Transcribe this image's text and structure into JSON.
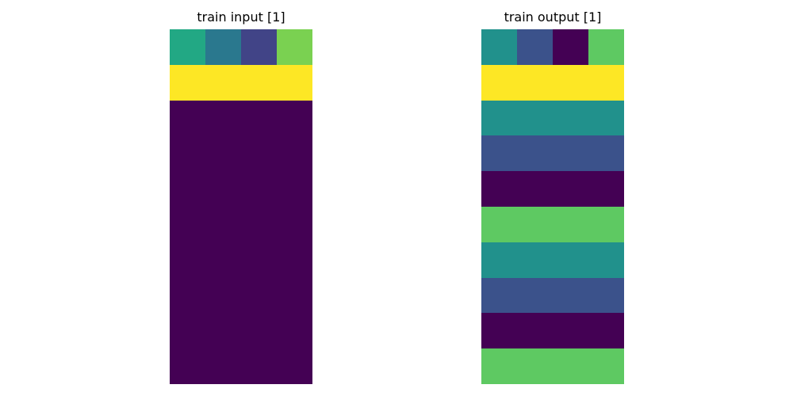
{
  "palette": {
    "0": "#440154",
    "1": "#482878",
    "2": "#3e4989",
    "3": "#31688e",
    "4": "#26828e",
    "5": "#1f9e89",
    "6": "#35b779",
    "7": "#6ece58",
    "8": "#b5de2b",
    "9": "#fde725"
  },
  "panels": [
    {
      "title": "train input [1]",
      "grid": [
        [
          "#22a884",
          "#2a788e",
          "#414487",
          "#7ad151"
        ],
        [
          "#fde725",
          "#fde725",
          "#fde725",
          "#fde725"
        ],
        [
          "#440154",
          "#440154",
          "#440154",
          "#440154"
        ],
        [
          "#440154",
          "#440154",
          "#440154",
          "#440154"
        ],
        [
          "#440154",
          "#440154",
          "#440154",
          "#440154"
        ],
        [
          "#440154",
          "#440154",
          "#440154",
          "#440154"
        ],
        [
          "#440154",
          "#440154",
          "#440154",
          "#440154"
        ],
        [
          "#440154",
          "#440154",
          "#440154",
          "#440154"
        ],
        [
          "#440154",
          "#440154",
          "#440154",
          "#440154"
        ],
        [
          "#440154",
          "#440154",
          "#440154",
          "#440154"
        ]
      ]
    },
    {
      "title": "train output [1]",
      "grid": [
        [
          "#21918c",
          "#3b528b",
          "#440154",
          "#5ec962"
        ],
        [
          "#fde725",
          "#fde725",
          "#fde725",
          "#fde725"
        ],
        [
          "#21918c",
          "#21918c",
          "#21918c",
          "#21918c"
        ],
        [
          "#3b528b",
          "#3b528b",
          "#3b528b",
          "#3b528b"
        ],
        [
          "#440154",
          "#440154",
          "#440154",
          "#440154"
        ],
        [
          "#5ec962",
          "#5ec962",
          "#5ec962",
          "#5ec962"
        ],
        [
          "#21918c",
          "#21918c",
          "#21918c",
          "#21918c"
        ],
        [
          "#3b528b",
          "#3b528b",
          "#3b528b",
          "#3b528b"
        ],
        [
          "#440154",
          "#440154",
          "#440154",
          "#440154"
        ],
        [
          "#5ec962",
          "#5ec962",
          "#5ec962",
          "#5ec962"
        ]
      ]
    }
  ]
}
